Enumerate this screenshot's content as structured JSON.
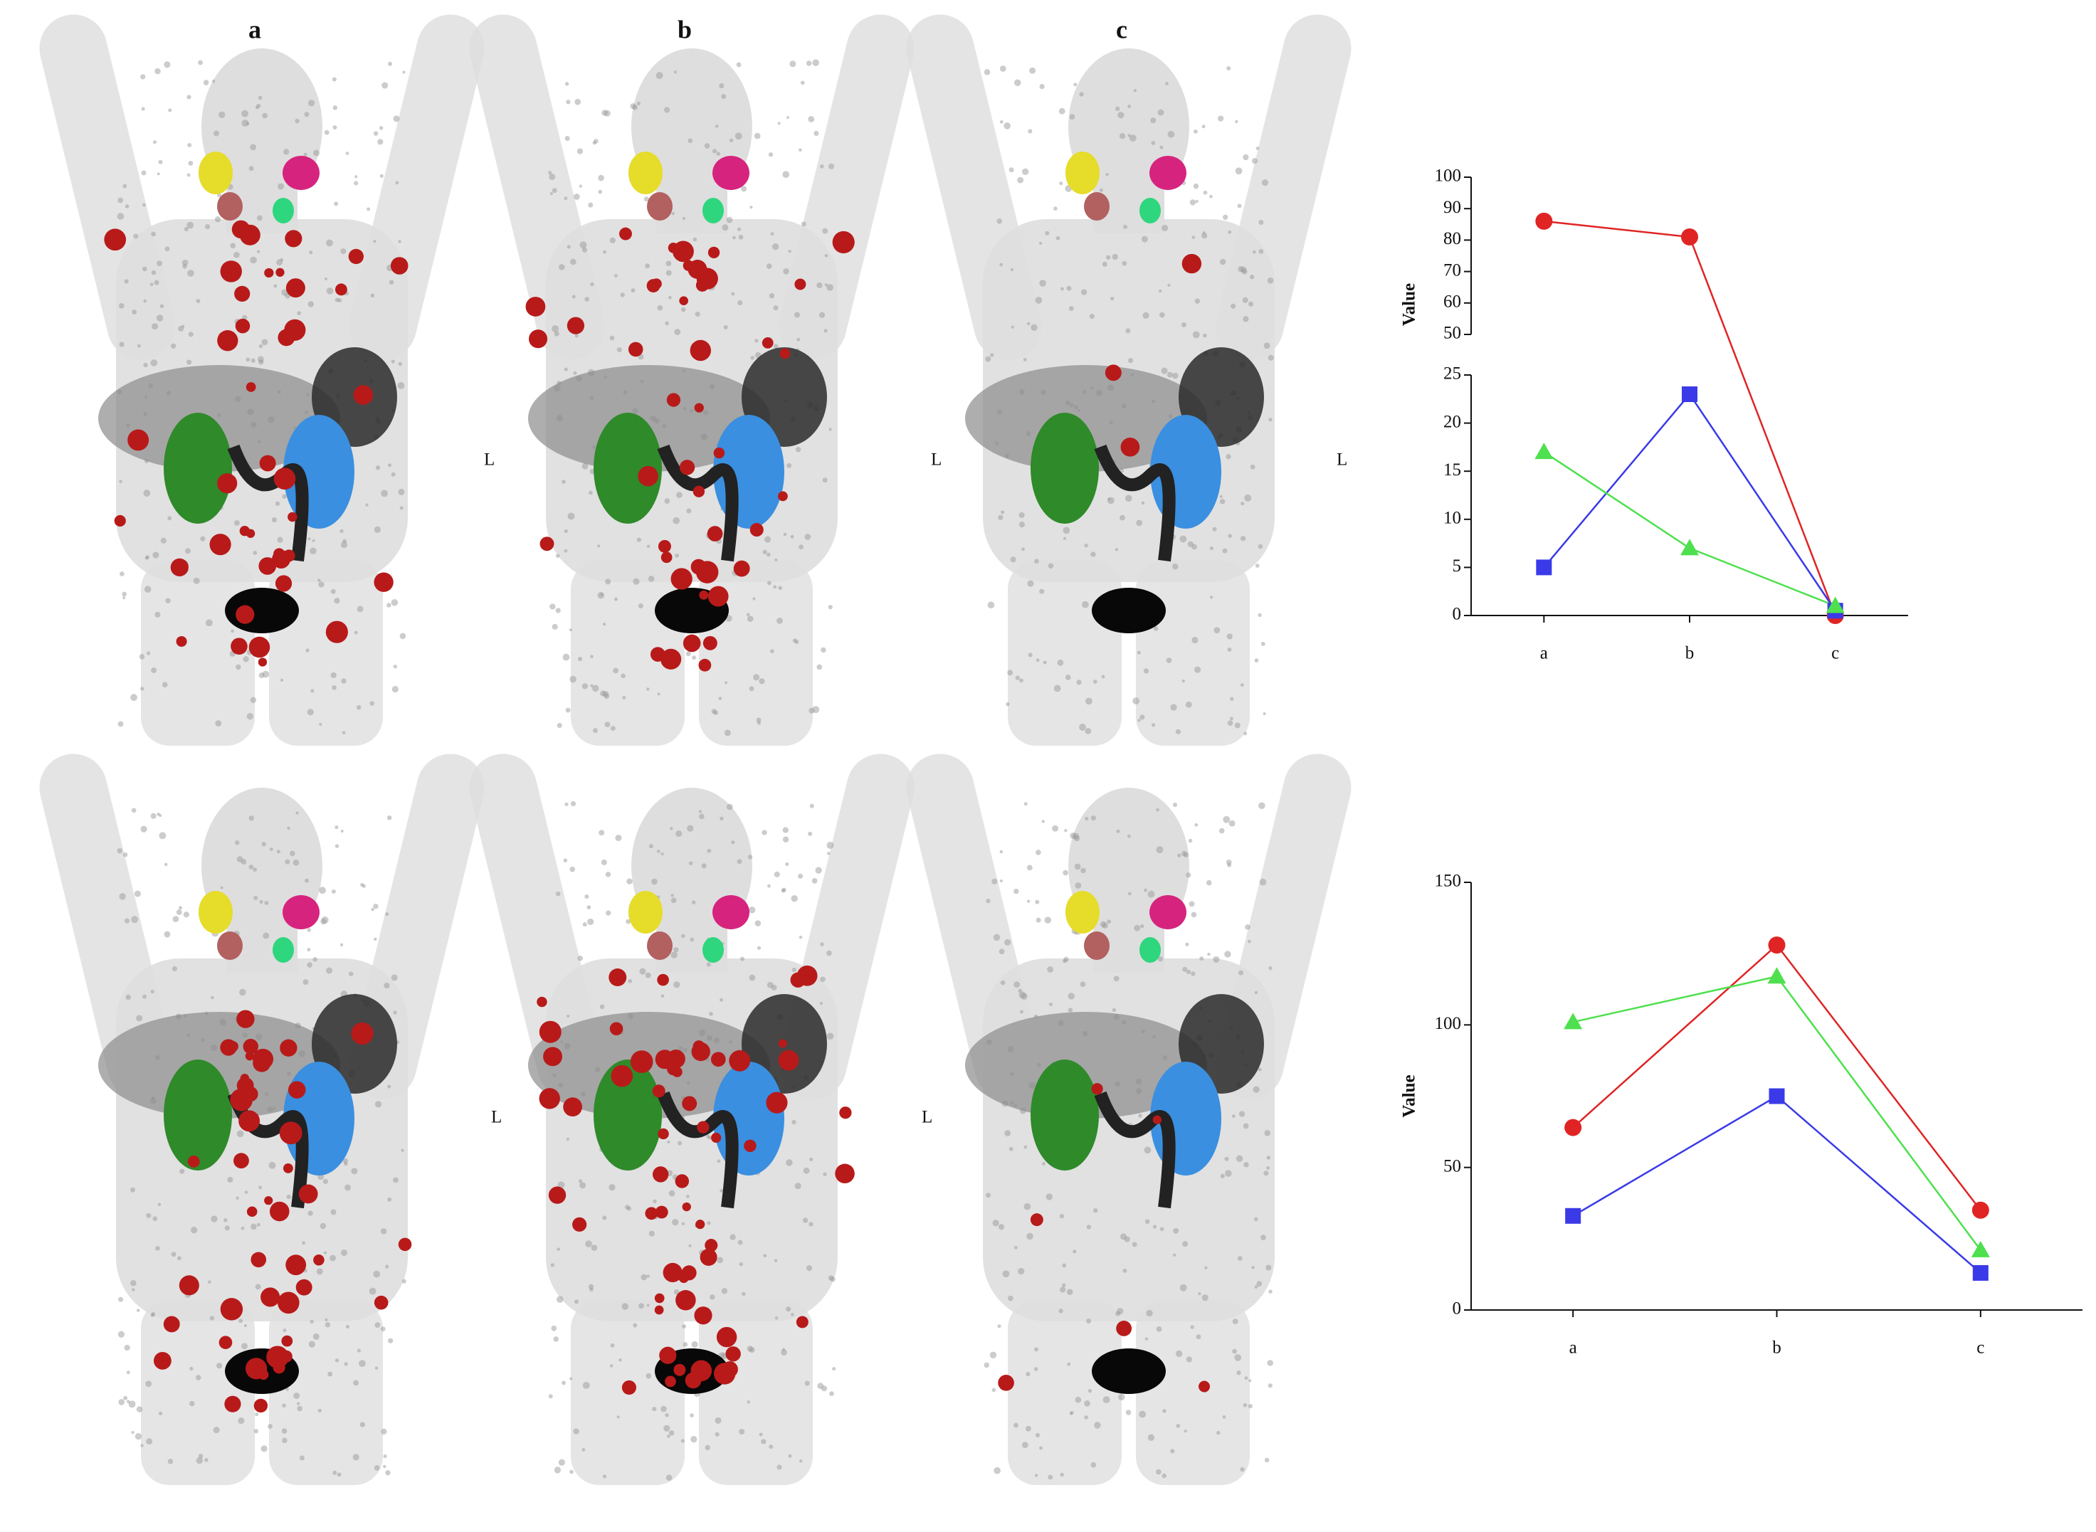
{
  "panels": {
    "column_labels": [
      "a",
      "b",
      "c"
    ],
    "side_marker": "L"
  },
  "chart_data": [
    {
      "type": "line",
      "y_label": "Value",
      "categories": [
        "a",
        "b",
        "c"
      ],
      "ylim": [
        0,
        100
      ],
      "ybreak": [
        25,
        50
      ],
      "yticks": [
        0,
        5,
        10,
        15,
        20,
        25,
        50,
        60,
        70,
        80,
        90,
        100
      ],
      "series": [
        {
          "color": "#e02424",
          "marker": "circle",
          "values": [
            86,
            81,
            0
          ]
        },
        {
          "color": "#3a3ae8",
          "marker": "square",
          "values": [
            5,
            23,
            0.5
          ]
        },
        {
          "color": "#4ee04e",
          "marker": "triangle",
          "values": [
            17,
            7,
            1
          ]
        }
      ]
    },
    {
      "type": "line",
      "y_label": "Value",
      "categories": [
        "a",
        "b",
        "c"
      ],
      "ylim": [
        0,
        150
      ],
      "yticks": [
        0,
        50,
        100,
        150
      ],
      "series": [
        {
          "color": "#e02424",
          "marker": "circle",
          "values": [
            64,
            128,
            35
          ]
        },
        {
          "color": "#3a3ae8",
          "marker": "square",
          "values": [
            33,
            75,
            13
          ]
        },
        {
          "color": "#4ee04e",
          "marker": "triangle",
          "values": [
            101,
            117,
            21
          ]
        }
      ]
    }
  ]
}
